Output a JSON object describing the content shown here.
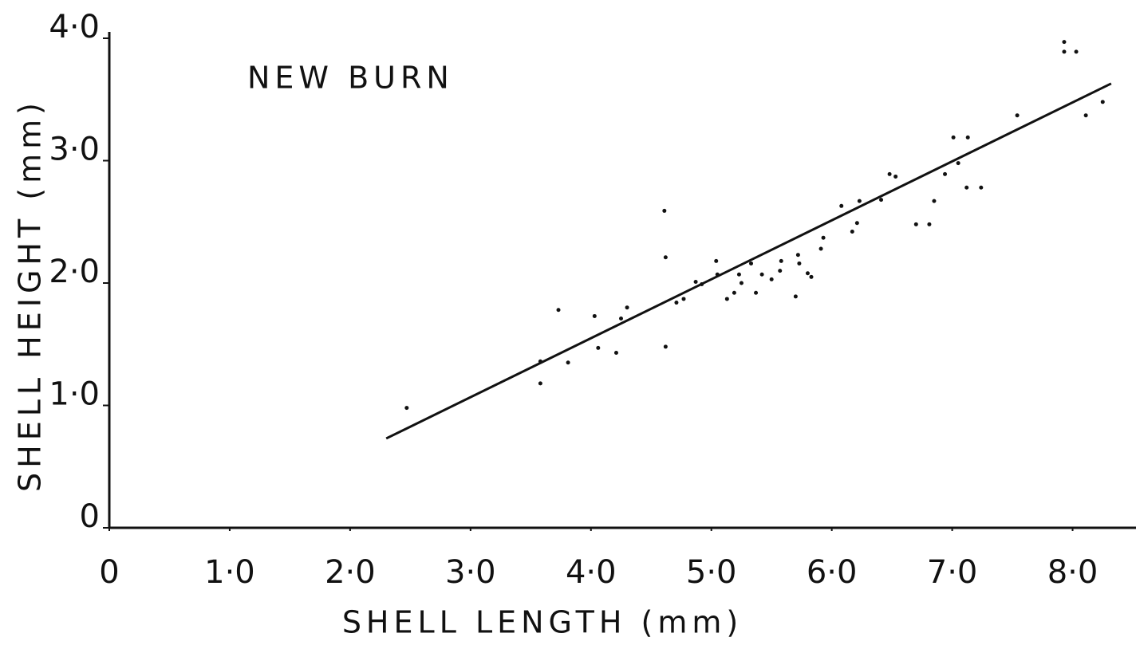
{
  "chart_data": {
    "type": "scatter",
    "title": "NEW BURN",
    "x_label": "SHELL LENGTH  (mm)",
    "y_label": "SHELL HEIGHT (mm)",
    "xlim": [
      0,
      8.5
    ],
    "ylim": [
      0,
      4
    ],
    "xticks": [
      0,
      {
        "value": 1,
        "label": "1·0"
      },
      {
        "value": 2,
        "label": "2·0"
      },
      {
        "value": 3,
        "label": "3·0"
      },
      {
        "value": 4,
        "label": "4·0"
      },
      {
        "value": 5,
        "label": "5·0"
      },
      {
        "value": 6,
        "label": "6·0"
      },
      {
        "value": 7,
        "label": "7·0"
      },
      {
        "value": 8,
        "label": "8·0"
      }
    ],
    "yticks": [
      0,
      {
        "value": 1,
        "label": "1·0"
      },
      {
        "value": 2,
        "label": "2·0"
      },
      {
        "value": 3,
        "label": "3·0"
      },
      {
        "value": 4,
        "label": "4·0"
      }
    ],
    "color": "#111",
    "points": {
      "x": [
        2.47,
        3.73,
        3.58,
        3.58,
        3.81,
        4.03,
        4.06,
        4.21,
        4.25,
        4.3,
        4.61,
        4.62,
        4.62,
        4.71,
        4.77,
        4.87,
        4.92,
        5.04,
        5.05,
        5.13,
        5.19,
        5.23,
        5.25,
        5.33,
        5.37,
        5.42,
        5.5,
        5.57,
        5.58,
        5.7,
        5.72,
        5.73,
        5.8,
        5.83,
        5.91,
        5.93,
        6.08,
        6.17,
        6.21,
        6.23,
        6.41,
        6.48,
        6.53,
        6.7,
        6.81,
        6.85,
        6.94,
        7.01,
        7.05,
        7.13,
        7.12,
        7.24,
        7.54,
        7.93,
        8.03,
        7.93,
        8.11,
        8.25
      ],
      "y": [
        0.98,
        1.78,
        1.36,
        1.18,
        1.35,
        1.73,
        1.47,
        1.43,
        1.71,
        1.8,
        2.59,
        2.21,
        1.48,
        1.84,
        1.87,
        2.01,
        1.99,
        2.18,
        2.07,
        1.87,
        1.92,
        2.07,
        2.0,
        2.16,
        1.92,
        2.07,
        2.03,
        2.1,
        2.18,
        1.89,
        2.23,
        2.16,
        2.08,
        2.05,
        2.28,
        2.37,
        2.63,
        2.42,
        2.49,
        2.67,
        2.68,
        2.89,
        2.87,
        2.48,
        2.48,
        2.67,
        2.89,
        3.19,
        2.98,
        3.19,
        2.78,
        2.78,
        3.37,
        3.97,
        3.89,
        3.89,
        3.37,
        3.48
      ]
    },
    "fit_line": {
      "x": [
        2.3,
        8.32
      ],
      "y": [
        0.73,
        3.63
      ]
    }
  }
}
